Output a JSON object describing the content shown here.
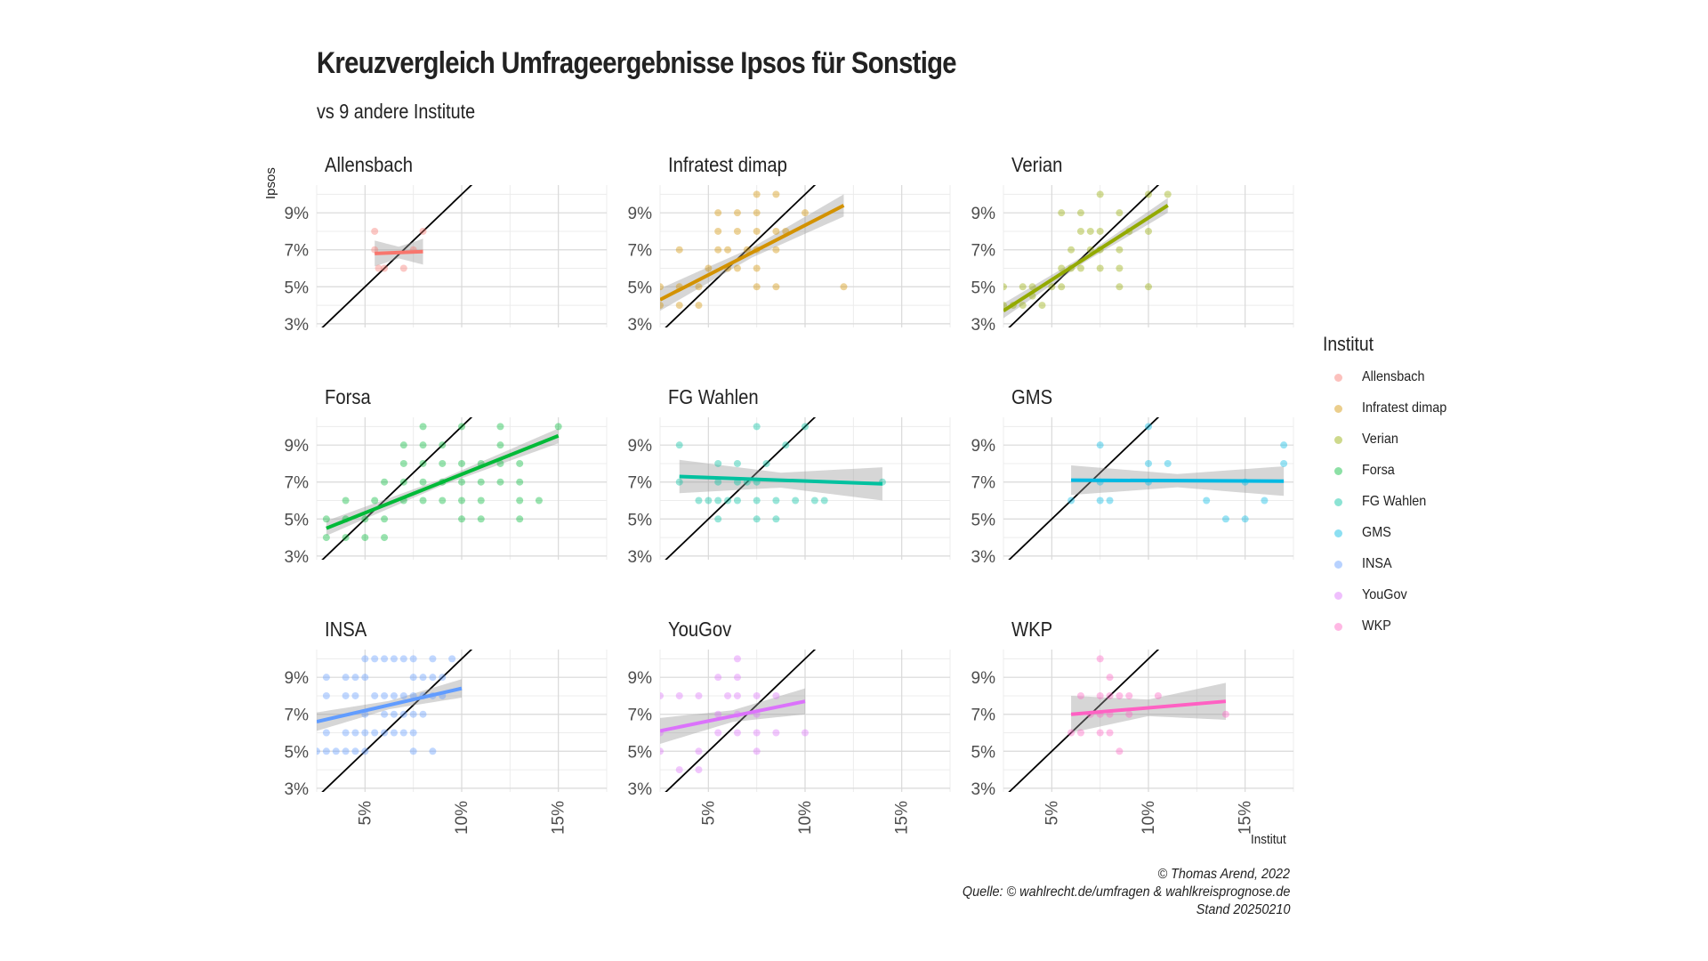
{
  "title": "Kreuzvergleich Umfrageergebnisse Ipsos für Sonstige",
  "subtitle": "vs 9 andere Institute",
  "caption": {
    "line1": "© Thomas Arend, 2022",
    "line2": "Quelle: © wahlrecht.de/umfragen & wahlkreisprognose.de",
    "line3": "Stand 20250210"
  },
  "legend": {
    "title": "Institut",
    "items": [
      {
        "label": "Allensbach",
        "color": "#F8766D"
      },
      {
        "label": "Infratest dimap",
        "color": "#D39200"
      },
      {
        "label": "Verian",
        "color": "#93AA00"
      },
      {
        "label": "Forsa",
        "color": "#00BA38"
      },
      {
        "label": "FG Wahlen",
        "color": "#00C19F"
      },
      {
        "label": "GMS",
        "color": "#00B9E3"
      },
      {
        "label": "INSA",
        "color": "#619CFF"
      },
      {
        "label": "YouGov",
        "color": "#DB72FB"
      },
      {
        "label": "WKP",
        "color": "#FF61C3"
      }
    ]
  },
  "chart_data": {
    "type": "scatter",
    "xlabel": "Institut",
    "ylabel": "Ipsos",
    "x_ticks": [
      "5%",
      "10%",
      "15%"
    ],
    "y_ticks": [
      "3%",
      "5%",
      "7%",
      "9%"
    ],
    "xlim": [
      2.5,
      17.5
    ],
    "ylim": [
      2.8,
      10.5
    ],
    "reference_line": "y = x",
    "panels": [
      {
        "name": "Allensbach",
        "color": "#F8766D",
        "points": [
          [
            5.5,
            8
          ],
          [
            5.5,
            7
          ],
          [
            5.7,
            6
          ],
          [
            6,
            6
          ],
          [
            7,
            6
          ],
          [
            7.5,
            7
          ],
          [
            8,
            8
          ]
        ],
        "trend": {
          "x": [
            5.5,
            8
          ],
          "y": [
            6.8,
            6.9
          ],
          "band": 0.7
        }
      },
      {
        "name": "Infratest dimap",
        "color": "#D39200",
        "points": [
          [
            2.5,
            5
          ],
          [
            2.5,
            4
          ],
          [
            3.5,
            7
          ],
          [
            3.5,
            4
          ],
          [
            3.5,
            5
          ],
          [
            4.5,
            5
          ],
          [
            4.5,
            4
          ],
          [
            5,
            6
          ],
          [
            5.5,
            9
          ],
          [
            5.5,
            7
          ],
          [
            5.5,
            8
          ],
          [
            6,
            6
          ],
          [
            6,
            7
          ],
          [
            6.5,
            9
          ],
          [
            6.5,
            8
          ],
          [
            6.5,
            6
          ],
          [
            7,
            7
          ],
          [
            7.5,
            10
          ],
          [
            7.5,
            9
          ],
          [
            7.5,
            8
          ],
          [
            7.5,
            7
          ],
          [
            7.5,
            6
          ],
          [
            7.5,
            5
          ],
          [
            8.5,
            10
          ],
          [
            8.5,
            8
          ],
          [
            8.5,
            7
          ],
          [
            8.5,
            5
          ],
          [
            9,
            8
          ],
          [
            10,
            9
          ],
          [
            12,
            5
          ]
        ],
        "trend": {
          "x": [
            2.5,
            12
          ],
          "y": [
            4.3,
            9.4
          ],
          "band": 0.6
        }
      },
      {
        "name": "Verian",
        "color": "#93AA00",
        "points": [
          [
            2.5,
            5
          ],
          [
            2.5,
            4
          ],
          [
            3,
            4
          ],
          [
            3.5,
            5
          ],
          [
            3.5,
            4
          ],
          [
            4,
            5
          ],
          [
            4,
            4.5
          ],
          [
            4.5,
            4
          ],
          [
            5,
            5
          ],
          [
            5.5,
            9
          ],
          [
            5.5,
            6
          ],
          [
            5.5,
            5
          ],
          [
            6,
            6
          ],
          [
            6,
            7
          ],
          [
            6.5,
            9
          ],
          [
            6.5,
            6
          ],
          [
            6.5,
            8
          ],
          [
            7,
            7
          ],
          [
            7,
            8
          ],
          [
            7.5,
            10
          ],
          [
            7.5,
            8
          ],
          [
            7.5,
            7
          ],
          [
            7.5,
            6
          ],
          [
            8.5,
            9
          ],
          [
            8.5,
            7
          ],
          [
            8.5,
            6
          ],
          [
            8.5,
            5
          ],
          [
            9,
            8
          ],
          [
            10,
            10
          ],
          [
            10,
            8
          ],
          [
            10,
            5
          ],
          [
            11,
            10
          ]
        ],
        "trend": {
          "x": [
            2.5,
            11
          ],
          "y": [
            3.7,
            9.4
          ],
          "band": 0.4
        }
      },
      {
        "name": "Forsa",
        "color": "#00BA38",
        "points": [
          [
            3,
            5
          ],
          [
            3,
            4
          ],
          [
            4,
            6
          ],
          [
            4,
            5
          ],
          [
            4,
            4
          ],
          [
            5,
            5
          ],
          [
            5,
            4
          ],
          [
            5.5,
            6
          ],
          [
            6,
            7
          ],
          [
            6,
            5
          ],
          [
            6,
            4
          ],
          [
            7,
            9
          ],
          [
            7,
            8
          ],
          [
            7,
            7
          ],
          [
            7,
            6
          ],
          [
            8,
            10
          ],
          [
            8,
            9
          ],
          [
            8,
            8
          ],
          [
            8,
            7
          ],
          [
            8,
            6
          ],
          [
            9,
            9
          ],
          [
            9,
            8
          ],
          [
            9,
            7
          ],
          [
            9,
            6
          ],
          [
            10,
            10
          ],
          [
            10,
            8
          ],
          [
            10,
            7
          ],
          [
            10,
            6
          ],
          [
            10,
            5
          ],
          [
            11,
            8
          ],
          [
            11,
            7
          ],
          [
            11,
            6
          ],
          [
            11,
            5
          ],
          [
            12,
            10
          ],
          [
            12,
            9
          ],
          [
            12,
            8
          ],
          [
            12,
            7
          ],
          [
            13,
            8
          ],
          [
            13,
            7
          ],
          [
            13,
            6
          ],
          [
            13,
            5
          ],
          [
            14,
            6
          ],
          [
            15,
            10
          ]
        ],
        "trend": {
          "x": [
            3,
            15
          ],
          "y": [
            4.5,
            9.5
          ],
          "band": 0.4
        }
      },
      {
        "name": "FG Wahlen",
        "color": "#00C19F",
        "points": [
          [
            3.5,
            9
          ],
          [
            3.5,
            7
          ],
          [
            4.5,
            6
          ],
          [
            5,
            6
          ],
          [
            5.5,
            8
          ],
          [
            5.5,
            7
          ],
          [
            5.5,
            6
          ],
          [
            5.5,
            5
          ],
          [
            6,
            6
          ],
          [
            6.5,
            8
          ],
          [
            6.5,
            7
          ],
          [
            6.5,
            6
          ],
          [
            7,
            7
          ],
          [
            7.5,
            10
          ],
          [
            7.5,
            7
          ],
          [
            7.5,
            6
          ],
          [
            7.5,
            5
          ],
          [
            8,
            8
          ],
          [
            8.5,
            6
          ],
          [
            8.5,
            5
          ],
          [
            9,
            9
          ],
          [
            9.5,
            6
          ],
          [
            10,
            10
          ],
          [
            10.5,
            6
          ],
          [
            11,
            6
          ],
          [
            14,
            7
          ]
        ],
        "trend": {
          "x": [
            3.5,
            14
          ],
          "y": [
            7.3,
            6.9
          ],
          "band": 0.9
        }
      },
      {
        "name": "GMS",
        "color": "#00B9E3",
        "points": [
          [
            6,
            6
          ],
          [
            7.5,
            9
          ],
          [
            7.5,
            7
          ],
          [
            7.5,
            6
          ],
          [
            8,
            6
          ],
          [
            10,
            10
          ],
          [
            10,
            8
          ],
          [
            10,
            7
          ],
          [
            11,
            8
          ],
          [
            13,
            6
          ],
          [
            14,
            5
          ],
          [
            15,
            7
          ],
          [
            15,
            5
          ],
          [
            16,
            6
          ],
          [
            17,
            9
          ],
          [
            17,
            8
          ]
        ],
        "trend": {
          "x": [
            6,
            17
          ],
          "y": [
            7.1,
            7.05
          ],
          "band": 0.8
        }
      },
      {
        "name": "INSA",
        "color": "#619CFF",
        "points": [
          [
            2.5,
            5
          ],
          [
            3,
            5
          ],
          [
            3,
            6
          ],
          [
            3,
            8
          ],
          [
            3,
            9
          ],
          [
            3.5,
            5
          ],
          [
            4,
            5
          ],
          [
            4,
            6
          ],
          [
            4,
            8
          ],
          [
            4,
            9
          ],
          [
            4.5,
            5
          ],
          [
            4.5,
            6
          ],
          [
            4.5,
            8
          ],
          [
            4.5,
            9
          ],
          [
            5,
            5
          ],
          [
            5,
            6
          ],
          [
            5,
            7
          ],
          [
            5,
            9
          ],
          [
            5,
            10
          ],
          [
            5.5,
            6
          ],
          [
            5.5,
            8
          ],
          [
            5.5,
            10
          ],
          [
            6,
            6
          ],
          [
            6,
            7
          ],
          [
            6,
            8
          ],
          [
            6,
            10
          ],
          [
            6.5,
            6
          ],
          [
            6.5,
            7
          ],
          [
            6.5,
            8
          ],
          [
            6.5,
            10
          ],
          [
            7,
            6
          ],
          [
            7,
            7
          ],
          [
            7,
            8
          ],
          [
            7,
            10
          ],
          [
            7.5,
            5
          ],
          [
            7.5,
            6
          ],
          [
            7.5,
            7
          ],
          [
            7.5,
            8
          ],
          [
            7.5,
            9
          ],
          [
            7.5,
            10
          ],
          [
            8,
            7
          ],
          [
            8,
            8
          ],
          [
            8,
            9
          ],
          [
            8.5,
            5
          ],
          [
            8.5,
            8
          ],
          [
            8.5,
            9
          ],
          [
            8.5,
            10
          ],
          [
            9,
            8
          ],
          [
            9,
            9
          ],
          [
            9.5,
            10
          ]
        ],
        "trend": {
          "x": [
            2.5,
            10
          ],
          "y": [
            6.6,
            8.4
          ],
          "band": 0.5
        }
      },
      {
        "name": "YouGov",
        "color": "#DB72FB",
        "points": [
          [
            2.5,
            8
          ],
          [
            2.5,
            6
          ],
          [
            2.5,
            5
          ],
          [
            3.5,
            8
          ],
          [
            3.5,
            4
          ],
          [
            4.5,
            8
          ],
          [
            4.5,
            5
          ],
          [
            4.5,
            4
          ],
          [
            5.5,
            9
          ],
          [
            5.5,
            7
          ],
          [
            5.5,
            6
          ],
          [
            6,
            8
          ],
          [
            6.5,
            10
          ],
          [
            6.5,
            9
          ],
          [
            6.5,
            8
          ],
          [
            6.5,
            7
          ],
          [
            6.5,
            6
          ],
          [
            7.5,
            8
          ],
          [
            7.5,
            7
          ],
          [
            7.5,
            6
          ],
          [
            7.5,
            5
          ],
          [
            8.5,
            8
          ],
          [
            8.5,
            6
          ],
          [
            10,
            6
          ]
        ],
        "trend": {
          "x": [
            2.5,
            10
          ],
          "y": [
            6.1,
            7.7
          ],
          "band": 0.7
        }
      },
      {
        "name": "WKP",
        "color": "#FF61C3",
        "points": [
          [
            6,
            6
          ],
          [
            6.5,
            8
          ],
          [
            6.5,
            6
          ],
          [
            7,
            7
          ],
          [
            7.5,
            10
          ],
          [
            7.5,
            8
          ],
          [
            7.5,
            7
          ],
          [
            7.5,
            6
          ],
          [
            8,
            9
          ],
          [
            8,
            8
          ],
          [
            8,
            7
          ],
          [
            8,
            6
          ],
          [
            8.5,
            8
          ],
          [
            8.5,
            5
          ],
          [
            9,
            7
          ],
          [
            9,
            8
          ],
          [
            10.5,
            8
          ],
          [
            14,
            7
          ]
        ],
        "trend": {
          "x": [
            6,
            14
          ],
          "y": [
            7.0,
            7.7
          ],
          "band": 1.0
        }
      }
    ]
  }
}
